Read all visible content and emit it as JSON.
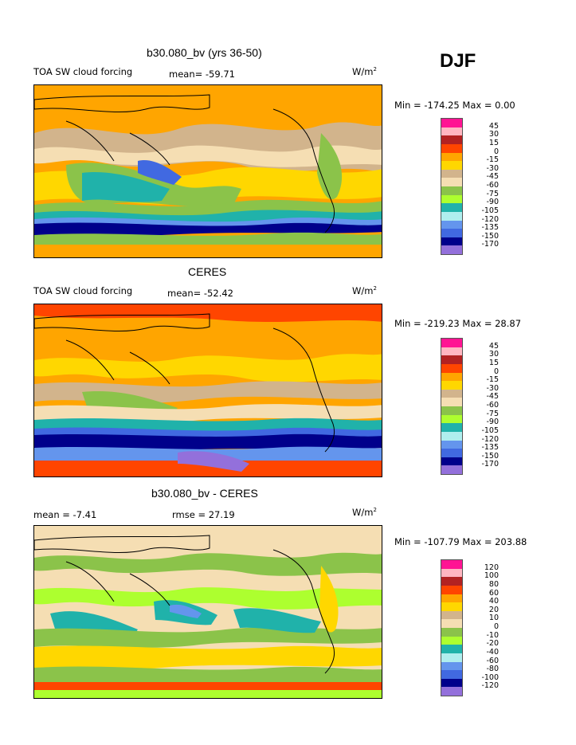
{
  "season": "DJF",
  "chart_data": [
    {
      "type": "heatmap",
      "title": "b30.080_bv (yrs 36-50)",
      "variable": "TOA SW cloud forcing",
      "mean_label": "mean= -59.71",
      "units": "W/m",
      "units_exp": "2",
      "minmax": "Min = -174.25 Max =    0.00",
      "levels": [
        "45",
        "30",
        "15",
        "0",
        "-15",
        "-30",
        "-45",
        "-60",
        "-75",
        "-90",
        "-105",
        "-120",
        "-135",
        "-150",
        "-170"
      ],
      "colors": [
        "#ff1493",
        "#ffb6c1",
        "#b22222",
        "#ff4500",
        "#ffa500",
        "#ffd700",
        "#d2b48c",
        "#f5deb3",
        "#8bc34a",
        "#adff2f",
        "#20b2aa",
        "#afeeee",
        "#6495ed",
        "#4169e1",
        "#00008b",
        "#9370db"
      ]
    },
    {
      "type": "heatmap",
      "title": "CERES",
      "variable": "TOA SW cloud forcing",
      "mean_label": "mean= -52.42",
      "units": "W/m",
      "units_exp": "2",
      "minmax": "Min = -219.23 Max =  28.87",
      "levels": [
        "45",
        "30",
        "15",
        "0",
        "-15",
        "-30",
        "-45",
        "-60",
        "-75",
        "-90",
        "-105",
        "-120",
        "-135",
        "-150",
        "-170"
      ],
      "colors": [
        "#ff1493",
        "#ffb6c1",
        "#b22222",
        "#ff4500",
        "#ffa500",
        "#ffd700",
        "#d2b48c",
        "#f5deb3",
        "#8bc34a",
        "#adff2f",
        "#20b2aa",
        "#afeeee",
        "#6495ed",
        "#4169e1",
        "#00008b",
        "#9370db"
      ]
    },
    {
      "type": "heatmap",
      "title": "b30.080_bv - CERES",
      "mean_label": "mean =   -7.41",
      "rmse_label": "rmse =  27.19",
      "units": "W/m",
      "units_exp": "2",
      "minmax": "Min = -107.79 Max = 203.88",
      "levels": [
        "120",
        "100",
        "80",
        "60",
        "40",
        "20",
        "10",
        "0",
        "-10",
        "-20",
        "-40",
        "-60",
        "-80",
        "-100",
        "-120"
      ],
      "colors": [
        "#ff1493",
        "#ffb6c1",
        "#b22222",
        "#ff4500",
        "#ffa500",
        "#ffd700",
        "#d2b48c",
        "#f5deb3",
        "#8bc34a",
        "#adff2f",
        "#20b2aa",
        "#afeeee",
        "#6495ed",
        "#4169e1",
        "#00008b",
        "#9370db"
      ]
    }
  ]
}
